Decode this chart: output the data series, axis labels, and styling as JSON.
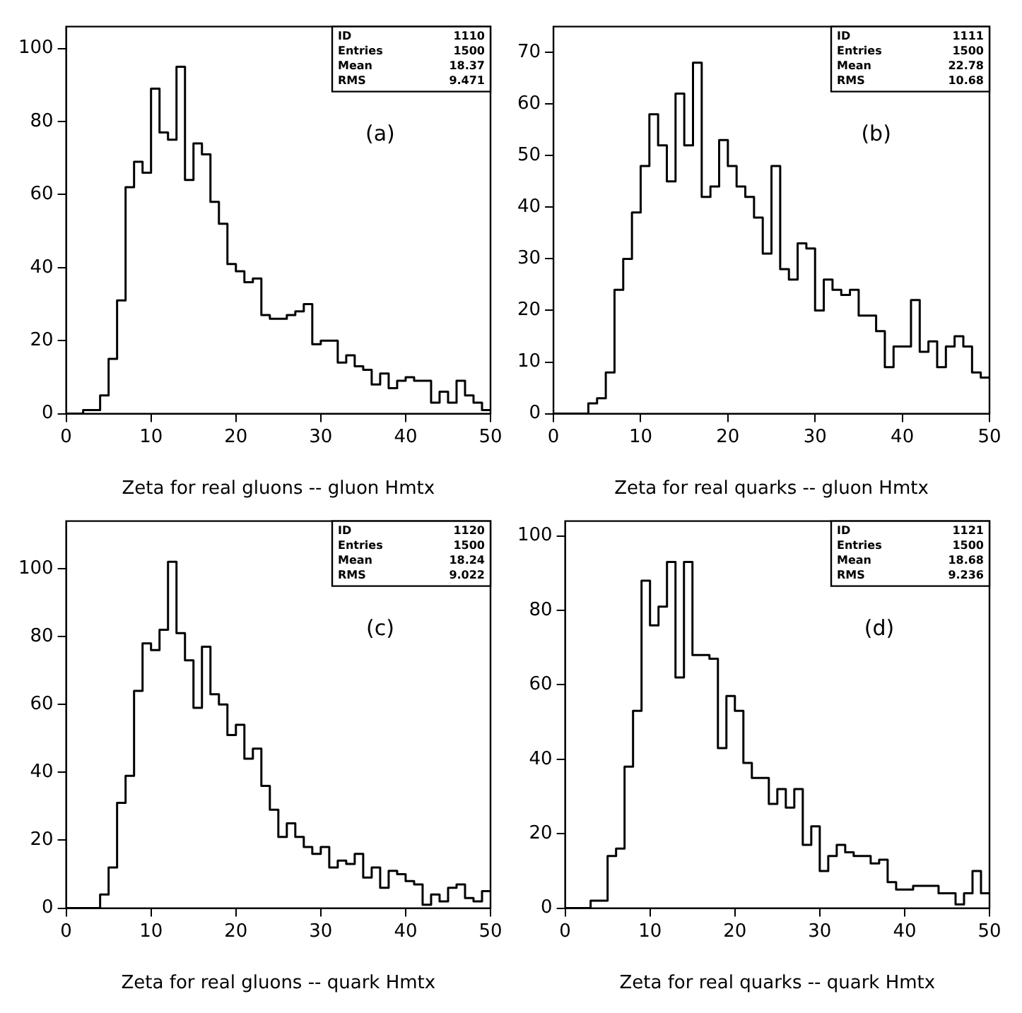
{
  "chart_data": [
    {
      "type": "histogram",
      "xlabel": "Zeta for real gluons -- gluon Hmtx",
      "bins": [
        0,
        1,
        2,
        3,
        4,
        5,
        6,
        7,
        8,
        9,
        10,
        11,
        12,
        13,
        14,
        15,
        16,
        17,
        18,
        19,
        20,
        21,
        22,
        23,
        24,
        25,
        26,
        27,
        28,
        29,
        30,
        31,
        32,
        33,
        34,
        35,
        36,
        37,
        38,
        39,
        40,
        41,
        42,
        43,
        44,
        45,
        46,
        47,
        48,
        49,
        50
      ],
      "values": [
        0,
        0,
        1,
        1,
        5,
        15,
        31,
        62,
        69,
        66,
        89,
        77,
        75,
        95,
        64,
        74,
        71,
        58,
        52,
        41,
        39,
        36,
        37,
        27,
        26,
        26,
        27,
        28,
        30,
        19,
        20,
        20,
        14,
        16,
        13,
        12,
        8,
        11,
        7,
        9,
        10,
        9,
        9,
        3,
        6,
        3,
        9,
        5,
        3,
        1
      ],
      "color": "#000000",
      "xlim": [
        0,
        50
      ],
      "ylim": [
        0,
        106
      ],
      "xticks": [
        0,
        10,
        20,
        30,
        40,
        50
      ],
      "yticks": [
        0,
        20,
        40,
        60,
        80,
        100
      ],
      "annotations": [
        "(a)",
        "ID",
        "1110",
        "Entries",
        "1500",
        "Mean",
        "18.37",
        "RMS",
        "9.471"
      ]
    },
    {
      "type": "histogram",
      "xlabel": "Zeta for real quarks -- gluon Hmtx",
      "bins": [
        0,
        1,
        2,
        3,
        4,
        5,
        6,
        7,
        8,
        9,
        10,
        11,
        12,
        13,
        14,
        15,
        16,
        17,
        18,
        19,
        20,
        21,
        22,
        23,
        24,
        25,
        26,
        27,
        28,
        29,
        30,
        31,
        32,
        33,
        34,
        35,
        36,
        37,
        38,
        39,
        40,
        41,
        42,
        43,
        44,
        45,
        46,
        47,
        48,
        49,
        50
      ],
      "values": [
        0,
        0,
        0,
        0,
        2,
        3,
        8,
        24,
        30,
        39,
        48,
        58,
        52,
        45,
        62,
        52,
        68,
        42,
        44,
        53,
        48,
        44,
        42,
        38,
        31,
        48,
        28,
        26,
        33,
        32,
        20,
        26,
        24,
        23,
        24,
        19,
        19,
        16,
        9,
        13,
        13,
        22,
        12,
        14,
        9,
        13,
        15,
        13,
        8,
        7
      ],
      "color": "#000000",
      "xlim": [
        0,
        50
      ],
      "ylim": [
        0,
        75
      ],
      "xticks": [
        0,
        10,
        20,
        30,
        40,
        50
      ],
      "yticks": [
        0,
        10,
        20,
        30,
        40,
        50,
        60,
        70
      ],
      "annotations": [
        "(b)",
        "ID",
        "1111",
        "Entries",
        "1500",
        "Mean",
        "22.78",
        "RMS",
        "10.68"
      ]
    },
    {
      "type": "histogram",
      "xlabel": "Zeta for real gluons -- quark Hmtx",
      "bins": [
        0,
        1,
        2,
        3,
        4,
        5,
        6,
        7,
        8,
        9,
        10,
        11,
        12,
        13,
        14,
        15,
        16,
        17,
        18,
        19,
        20,
        21,
        22,
        23,
        24,
        25,
        26,
        27,
        28,
        29,
        30,
        31,
        32,
        33,
        34,
        35,
        36,
        37,
        38,
        39,
        40,
        41,
        42,
        43,
        44,
        45,
        46,
        47,
        48,
        49,
        50
      ],
      "values": [
        0,
        0,
        0,
        0,
        4,
        12,
        31,
        39,
        64,
        78,
        76,
        82,
        102,
        81,
        73,
        59,
        77,
        63,
        60,
        51,
        54,
        44,
        47,
        36,
        29,
        21,
        25,
        21,
        18,
        16,
        18,
        12,
        14,
        13,
        16,
        9,
        12,
        6,
        11,
        10,
        8,
        7,
        1,
        4,
        2,
        6,
        7,
        3,
        2,
        5
      ],
      "color": "#000000",
      "xlim": [
        0,
        50
      ],
      "ylim": [
        0,
        114
      ],
      "xticks": [
        0,
        10,
        20,
        30,
        40,
        50
      ],
      "yticks": [
        0,
        20,
        40,
        60,
        80,
        100
      ],
      "annotations": [
        "(c)",
        "ID",
        "1120",
        "Entries",
        "1500",
        "Mean",
        "18.24",
        "RMS",
        "9.022"
      ]
    },
    {
      "type": "histogram",
      "xlabel": "Zeta for real quarks -- quark Hmtx",
      "bins": [
        0,
        1,
        2,
        3,
        4,
        5,
        6,
        7,
        8,
        9,
        10,
        11,
        12,
        13,
        14,
        15,
        16,
        17,
        18,
        19,
        20,
        21,
        22,
        23,
        24,
        25,
        26,
        27,
        28,
        29,
        30,
        31,
        32,
        33,
        34,
        35,
        36,
        37,
        38,
        39,
        40,
        41,
        42,
        43,
        44,
        45,
        46,
        47,
        48,
        49,
        50
      ],
      "values": [
        0,
        0,
        0,
        2,
        2,
        14,
        16,
        38,
        53,
        88,
        76,
        81,
        93,
        62,
        93,
        68,
        68,
        67,
        43,
        57,
        53,
        39,
        35,
        35,
        28,
        32,
        27,
        32,
        17,
        22,
        10,
        14,
        17,
        15,
        14,
        14,
        12,
        13,
        7,
        5,
        5,
        6,
        6,
        6,
        4,
        4,
        1,
        4,
        10,
        4
      ],
      "color": "#000000",
      "xlim": [
        0,
        50
      ],
      "ylim": [
        0,
        104
      ],
      "xticks": [
        0,
        10,
        20,
        30,
        40,
        50
      ],
      "yticks": [
        0,
        20,
        40,
        60,
        80,
        100
      ],
      "annotations": [
        "(d)",
        "ID",
        "1121",
        "Entries",
        "1500",
        "Mean",
        "18.68",
        "RMS",
        "9.236"
      ]
    }
  ]
}
